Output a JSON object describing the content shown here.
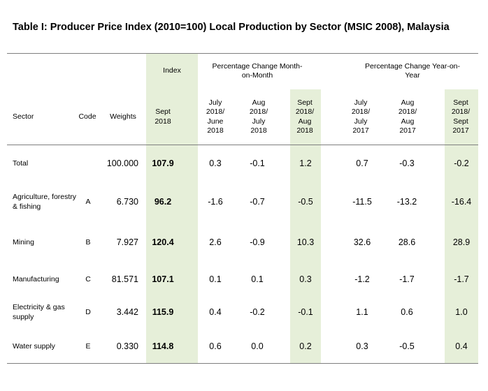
{
  "title": "Table I: Producer Price Index (2010=100) Local Production by Sector (MSIC 2008), Malaysia",
  "headers": {
    "index": "Index",
    "mom_group": "Percentage Change Month-on-Month",
    "yoy_group": "Percentage Change Year-on-Year",
    "sector": "Sector",
    "code": "Code",
    "weights": "Weights",
    "index_period": "Sept 2018",
    "mom": [
      "July 2018/ June 2018",
      "Aug 2018/ July 2018",
      "Sept 2018/ Aug 2018"
    ],
    "yoy": [
      "July 2018/ July 2017",
      "Aug 2018/ Aug 2017",
      "Sept 2018/ Sept 2017"
    ]
  },
  "rows": [
    {
      "sector": "Total",
      "code": "",
      "weights": "100.000",
      "index": "107.9",
      "mom": [
        "0.3",
        "-0.1",
        "1.2"
      ],
      "yoy": [
        "0.7",
        "-0.3",
        "-0.2"
      ]
    },
    {
      "sector": "Agriculture, forestry & fishing",
      "code": "A",
      "weights": "6.730",
      "index": "96.2",
      "mom": [
        "-1.6",
        "-0.7",
        "-0.5"
      ],
      "yoy": [
        "-11.5",
        "-13.2",
        "-16.4"
      ]
    },
    {
      "sector": "Mining",
      "code": "B",
      "weights": "7.927",
      "index": "120.4",
      "mom": [
        "2.6",
        "-0.9",
        "10.3"
      ],
      "yoy": [
        "32.6",
        "28.6",
        "28.9"
      ]
    },
    {
      "sector": "Manufacturing",
      "code": "C",
      "weights": "81.571",
      "index": "107.1",
      "mom": [
        "0.1",
        "0.1",
        "0.3"
      ],
      "yoy": [
        "-1.2",
        "-1.7",
        "-1.7"
      ]
    },
    {
      "sector": "Electricity & gas supply",
      "code": "D",
      "weights": "3.442",
      "index": "115.9",
      "mom": [
        "0.4",
        "-0.2",
        "-0.1"
      ],
      "yoy": [
        "1.1",
        "0.6",
        "1.0"
      ]
    },
    {
      "sector": "Water supply",
      "code": "E",
      "weights": "0.330",
      "index": "114.8",
      "mom": [
        "0.6",
        "0.0",
        "0.2"
      ],
      "yoy": [
        "0.3",
        "-0.5",
        "0.4"
      ]
    }
  ],
  "colors": {
    "highlight": "#e6efd9",
    "rule": "#7f7f7f"
  }
}
